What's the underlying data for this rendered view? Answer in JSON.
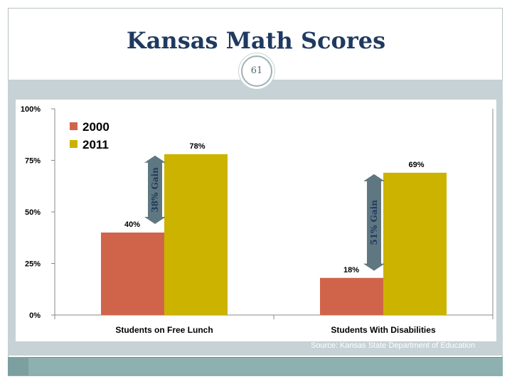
{
  "slide": {
    "title": "Kansas Math Scores",
    "page_number": "61",
    "source": "Source: Kansas State Department of Education"
  },
  "colors": {
    "series_2000": "#d0644a",
    "series_2011": "#cbb300",
    "arrow": "#5f7780",
    "title": "#1f3a60"
  },
  "chart_data": {
    "type": "bar",
    "categories": [
      "Students on Free Lunch",
      "Students With Disabilities"
    ],
    "series": [
      {
        "name": "2000",
        "values": [
          40,
          18
        ],
        "labels": [
          "40%",
          "18%"
        ]
      },
      {
        "name": "2011",
        "values": [
          78,
          69
        ],
        "labels": [
          "78%",
          "69%"
        ]
      }
    ],
    "ylim": [
      0,
      100
    ],
    "yticks": [
      "0%",
      "25%",
      "50%",
      "75%",
      "100%"
    ],
    "legend_position": "top-left",
    "grid": false,
    "annotations": [
      "38% Gain",
      "51% Gain"
    ]
  }
}
